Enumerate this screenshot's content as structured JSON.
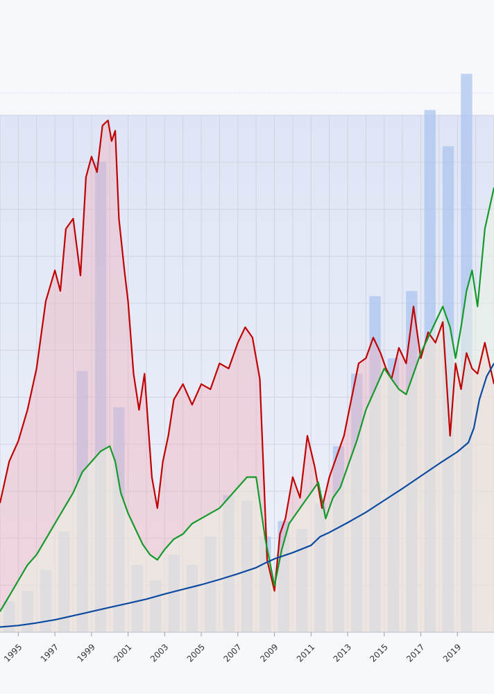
{
  "chart_data": {
    "type": "line",
    "title": "",
    "xlabel": "",
    "ylabel": "",
    "xlim": [
      1994.0,
      2021.0
    ],
    "ylim": [
      0,
      100
    ],
    "grid": true,
    "legend": "none",
    "x_ticks": [
      "1995",
      "1997",
      "1999",
      "2001",
      "2003",
      "2005",
      "2007",
      "2009",
      "2011",
      "2013",
      "2015",
      "2017",
      "2019"
    ],
    "colors": {
      "red_series": "#c00000",
      "green_series": "#139a2b",
      "blue_series": "#0a4aa0",
      "bars": "#a9c4ee",
      "plot_band": "#dde3f5"
    },
    "bars": {
      "x": [
        1994.5,
        1995.5,
        1996.5,
        1997.5,
        1998.5,
        1999.5,
        2000.5,
        2001.5,
        2002.5,
        2003.5,
        2004.5,
        2005.5,
        2006.5,
        2007.5,
        2008.5,
        2009.5,
        2010.5,
        2011.5,
        2012.5,
        2013.5,
        2014.5,
        2015.5,
        2016.5,
        2017.5,
        2018.5,
        2019.5
      ],
      "values": [
        6,
        8,
        12,
        19.5,
        50.5,
        91,
        43.5,
        13,
        10,
        15,
        13,
        18.5,
        26.5,
        25.5,
        18.5,
        21.5,
        20,
        25,
        36,
        50,
        65,
        53,
        66,
        101,
        94,
        108
      ]
    },
    "series": [
      {
        "x": [
          1994.0,
          1994.5,
          1995.0,
          1995.5,
          1996.0,
          1996.5,
          1997.0,
          1997.3,
          1997.6,
          1998.0,
          1998.4,
          1998.7,
          1999.0,
          1999.3,
          1999.6,
          1999.9,
          2000.1,
          2000.3,
          2000.5,
          2000.8,
          2001.0,
          2001.3,
          2001.6,
          2001.9,
          2002.3,
          2002.6,
          2002.9,
          2003.2,
          2003.5,
          2004.0,
          2004.5,
          2005.0,
          2005.5,
          2006.0,
          2006.5,
          2007.0,
          2007.4,
          2007.8,
          2008.2,
          2008.6,
          2009.0,
          2009.3,
          2009.6,
          2010.0,
          2010.4,
          2010.8,
          2011.2,
          2011.6,
          2012.0,
          2012.4,
          2012.8,
          2013.2,
          2013.6,
          2014.0,
          2014.4,
          2014.8,
          2015.1,
          2015.4,
          2015.8,
          2016.2,
          2016.6,
          2017.0,
          2017.4,
          2017.8,
          2018.2,
          2018.6,
          2018.9,
          2019.2,
          2019.5,
          2019.8,
          2020.1,
          2020.5,
          2021.0
        ],
        "values": [
          25,
          33,
          37,
          43,
          51,
          64,
          70,
          66,
          78,
          80,
          69,
          88,
          92,
          89,
          98,
          99,
          95,
          97,
          80,
          70,
          64,
          50,
          43,
          50,
          30,
          24,
          33,
          38,
          45,
          48,
          44,
          48,
          47,
          52,
          51,
          56,
          59,
          57,
          49,
          14,
          8,
          19,
          22,
          30,
          26,
          38,
          32,
          24,
          30,
          34,
          38,
          45,
          52,
          53,
          57,
          54,
          51,
          49,
          55,
          52,
          63,
          53,
          58,
          56,
          60,
          38,
          52,
          47,
          54,
          51,
          50,
          56,
          48
        ]
      },
      {
        "x": [
          1994.0,
          1994.5,
          1995.0,
          1995.5,
          1996.0,
          1996.5,
          1997.0,
          1997.5,
          1998.0,
          1998.5,
          1999.0,
          1999.5,
          2000.0,
          2000.3,
          2000.6,
          2001.0,
          2001.4,
          2001.8,
          2002.2,
          2002.6,
          2003.0,
          2003.5,
          2004.0,
          2004.5,
          2005.0,
          2005.5,
          2006.0,
          2006.5,
          2007.0,
          2007.5,
          2008.0,
          2008.5,
          2009.0,
          2009.4,
          2009.8,
          2010.2,
          2010.6,
          2011.0,
          2011.4,
          2011.8,
          2012.2,
          2012.6,
          2013.0,
          2013.5,
          2014.0,
          2014.5,
          2015.0,
          2015.4,
          2015.8,
          2016.2,
          2016.6,
          2017.0,
          2017.4,
          2017.8,
          2018.2,
          2018.6,
          2018.9,
          2019.2,
          2019.5,
          2019.8,
          2020.1,
          2020.5,
          2021.0
        ],
        "values": [
          4,
          7,
          10,
          13,
          15,
          18,
          21,
          24,
          27,
          31,
          33,
          35,
          36,
          33,
          27,
          23,
          20,
          17,
          15,
          14,
          16,
          18,
          19,
          21,
          22,
          23,
          24,
          26,
          28,
          30,
          30,
          18,
          9,
          16,
          21,
          23,
          25,
          27,
          29,
          22,
          26,
          28,
          32,
          37,
          43,
          47,
          51,
          49,
          47,
          46,
          50,
          54,
          57,
          60,
          63,
          59,
          53,
          59,
          66,
          70,
          63,
          78,
          86
        ]
      },
      {
        "x": [
          1994.0,
          1995.0,
          1996.0,
          1997.0,
          1998.0,
          1999.0,
          2000.0,
          2001.0,
          2002.0,
          2003.0,
          2004.0,
          2005.0,
          2006.0,
          2007.0,
          2008.0,
          2008.5,
          2009.0,
          2010.0,
          2011.0,
          2011.5,
          2012.0,
          2013.0,
          2014.0,
          2015.0,
          2016.0,
          2017.0,
          2018.0,
          2019.0,
          2019.6,
          2019.9,
          2020.2,
          2020.6,
          2021.0
        ],
        "values": [
          1,
          1.3,
          1.8,
          2.4,
          3.2,
          4,
          4.8,
          5.6,
          6.4,
          7.4,
          8.3,
          9.2,
          10.2,
          11.3,
          12.5,
          13.4,
          14.2,
          15.4,
          16.8,
          18.5,
          19.3,
          21.2,
          23.2,
          25.5,
          27.8,
          30.2,
          32.6,
          34.9,
          36.7,
          39.5,
          45,
          49.5,
          52
        ]
      }
    ]
  }
}
